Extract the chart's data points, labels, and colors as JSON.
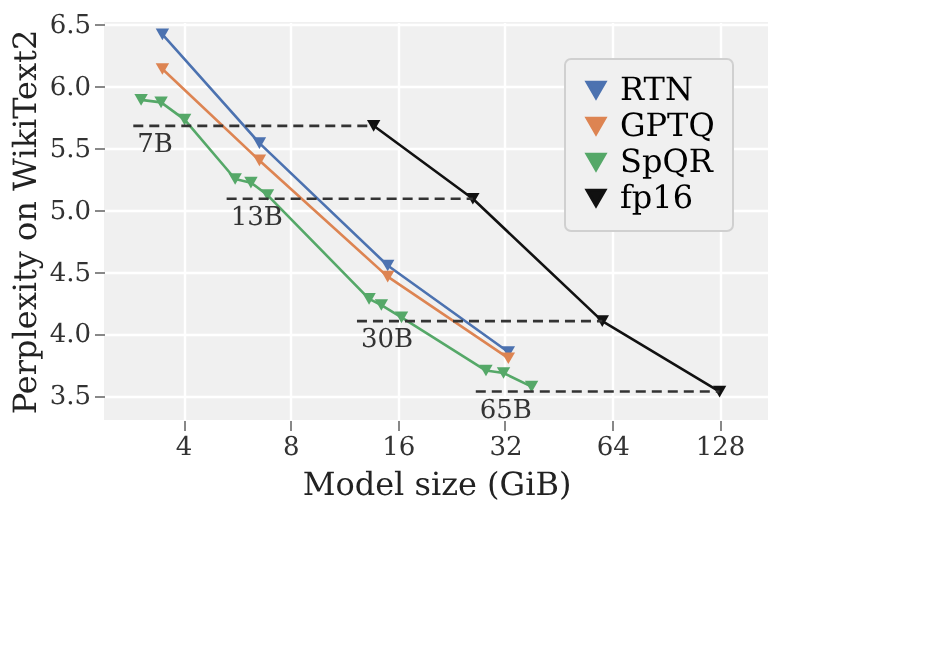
{
  "chart_data": {
    "type": "line",
    "xlabel": "Model size (GiB)",
    "ylabel": "Perplexity on WikiText2",
    "log": "x",
    "xlim": [
      2.4,
      175
    ],
    "xticks": [
      4,
      8,
      16,
      32,
      64,
      128
    ],
    "ylim": [
      3.3,
      6.52
    ],
    "yticks": [
      3.5,
      {
        "value": 4,
        "label": "4.0"
      },
      4.5,
      {
        "value": 5,
        "label": "5.0"
      },
      5.5,
      {
        "value": 6,
        "label": "6.0"
      },
      6.5
    ],
    "grid": true,
    "legend": "top right",
    "marker": "triangle",
    "line_style": "solid",
    "series": [
      {
        "name": "RTN",
        "color": "#4c72b0",
        "x": [
          3.5,
          6.55,
          15.0,
          32.7
        ],
        "values": [
          6.42,
          5.54,
          4.55,
          3.85
        ]
      },
      {
        "name": "GPTQ",
        "color": "#dd8452",
        "x": [
          3.5,
          6.55,
          15.0,
          32.7
        ],
        "values": [
          6.14,
          5.4,
          4.46,
          3.8
        ]
      },
      {
        "name": "SpQR",
        "color": "#55a868",
        "x": [
          3.05,
          3.47,
          4.04,
          5.6,
          6.2,
          6.9,
          13.3,
          14.4,
          16.4,
          28.3,
          31.7,
          38.0
        ],
        "values": [
          5.89,
          5.87,
          5.73,
          5.25,
          5.22,
          5.12,
          4.28,
          4.23,
          4.13,
          3.7,
          3.68,
          3.57
        ]
      },
      {
        "name": "fp16",
        "color": "#111111",
        "x": [
          13.7,
          26.0,
          60.0,
          128
        ],
        "values": [
          5.68,
          5.09,
          4.1,
          3.53
        ]
      },
      {
        "name": "7B",
        "color": "#333333",
        "line_style": "dashed",
        "marker": "none",
        "x": [
          2.9,
          13.7
        ],
        "values": [
          5.68,
          5.68
        ]
      },
      {
        "name": "13B",
        "color": "#333333",
        "line_style": "dashed",
        "marker": "none",
        "x": [
          5.3,
          26.0
        ],
        "values": [
          5.09,
          5.09
        ]
      },
      {
        "name": "30B",
        "color": "#333333",
        "line_style": "dashed",
        "marker": "none",
        "x": [
          12.3,
          60.0
        ],
        "values": [
          4.1,
          4.1
        ]
      },
      {
        "name": "65B",
        "color": "#333333",
        "line_style": "dashed",
        "marker": "none",
        "x": [
          26.5,
          128
        ],
        "values": [
          3.53,
          3.53
        ]
      }
    ]
  }
}
